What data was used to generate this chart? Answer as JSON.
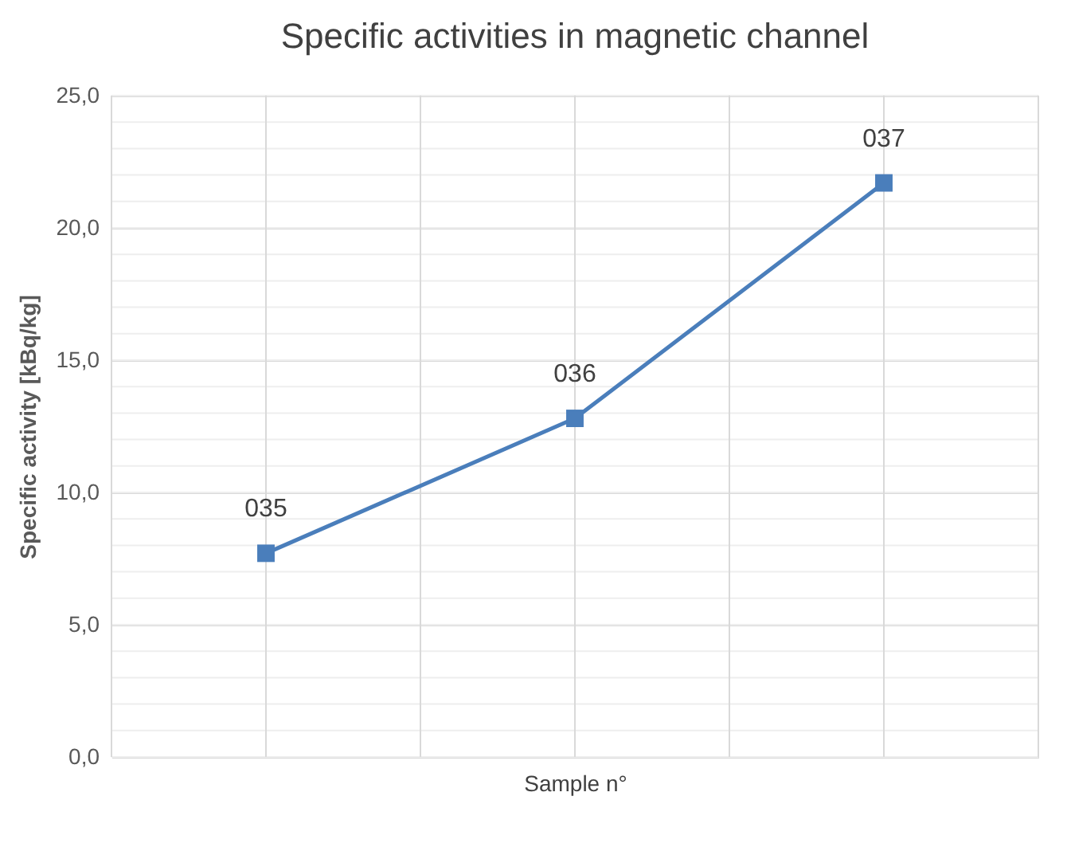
{
  "chart_data": {
    "type": "line",
    "title": "Specific activities in magnetic channel",
    "xlabel": "Sample n°",
    "ylabel": "Specific activity [kBq/kg]",
    "categories": [
      null,
      null,
      null
    ],
    "series": [
      {
        "color": "#4a7ebb",
        "values": [
          7.7,
          12.8,
          21.7
        ]
      }
    ],
    "annotations": [
      {
        "text": "035",
        "y": 7.7
      },
      {
        "text": "036",
        "y": 12.8
      },
      {
        "text": "037",
        "y": 21.7
      }
    ],
    "ylim": [
      0,
      25
    ],
    "yticks": [
      {
        "value": 0,
        "label": "0,0"
      },
      {
        "value": 5,
        "label": "5,0"
      },
      {
        "value": 10,
        "label": "10,0"
      },
      {
        "value": 15,
        "label": "15,0"
      },
      {
        "value": 20,
        "label": "20,0"
      },
      {
        "value": 25,
        "label": "25,0"
      }
    ],
    "grid": true,
    "marker": "square",
    "line_style": "solid",
    "tick_labels": "y",
    "legend": false
  }
}
